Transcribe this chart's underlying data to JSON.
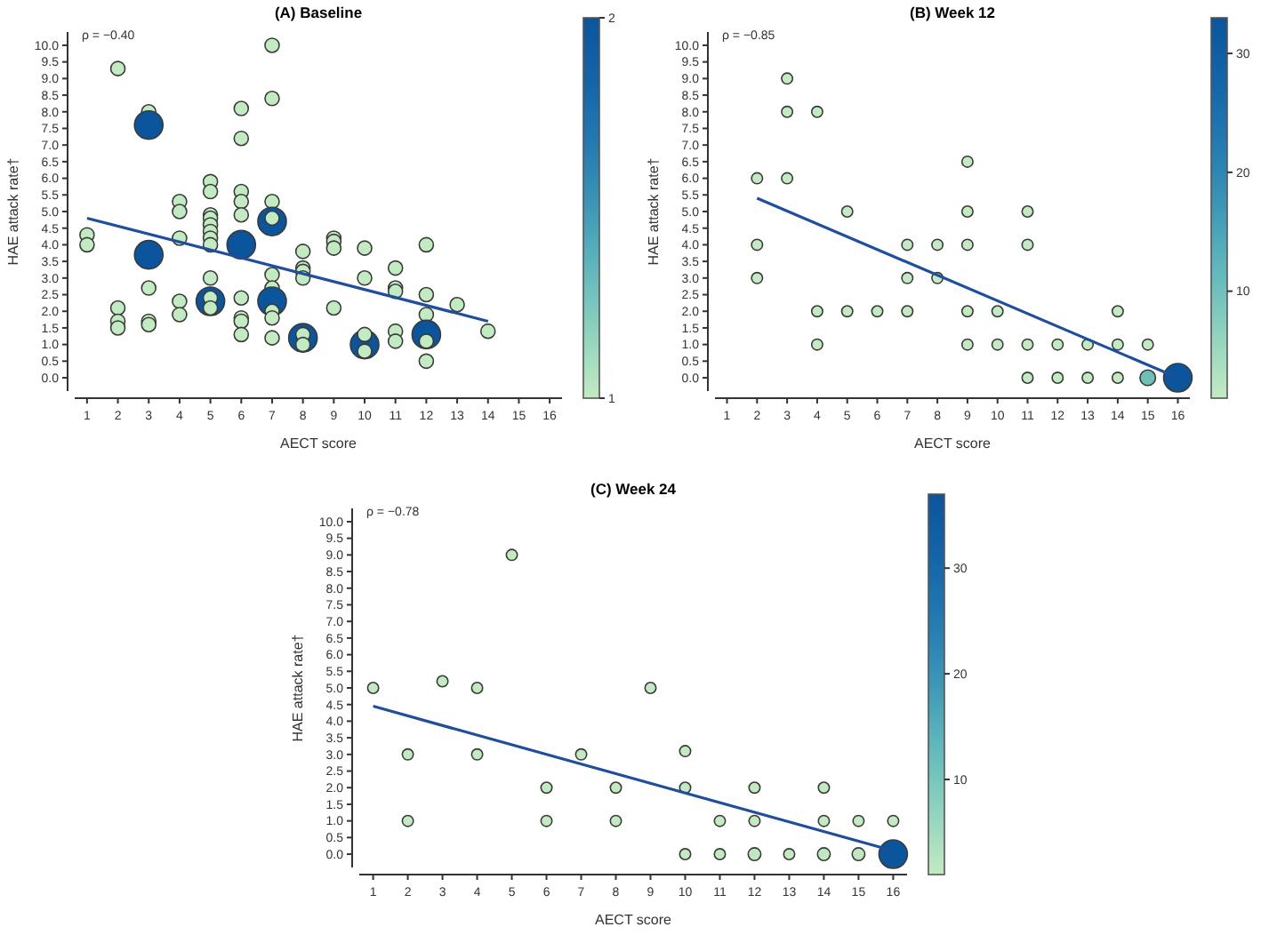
{
  "chart_data": [
    {
      "type": "bubble",
      "title": "(A) Baseline",
      "xlabel": "AECT score",
      "ylabel": "HAE attack rate†",
      "annotations": [
        "ρ = −0.40"
      ],
      "xlim": [
        0.6,
        16.4
      ],
      "ylim": [
        -0.4,
        10.4
      ],
      "xticks": [
        1,
        2,
        3,
        4,
        5,
        6,
        7,
        8,
        9,
        10,
        11,
        12,
        13,
        14,
        15,
        16
      ],
      "yticks": [
        {
          "value": 0,
          "label": "0.0"
        },
        {
          "value": 0.5,
          "label": "0.5"
        },
        {
          "value": 1,
          "label": "1.0"
        },
        {
          "value": 1.5,
          "label": "1.5"
        },
        {
          "value": 2,
          "label": "2.0"
        },
        {
          "value": 2.5,
          "label": "2.5"
        },
        {
          "value": 3,
          "label": "3.0"
        },
        {
          "value": 3.5,
          "label": "3.5"
        },
        {
          "value": 4,
          "label": "4.0"
        },
        {
          "value": 4.5,
          "label": "4.5"
        },
        {
          "value": 5,
          "label": "5.0"
        },
        {
          "value": 5.5,
          "label": "5.5"
        },
        {
          "value": 6,
          "label": "6.0"
        },
        {
          "value": 6.5,
          "label": "6.5"
        },
        {
          "value": 7,
          "label": "7.0"
        },
        {
          "value": 7.5,
          "label": "7.5"
        },
        {
          "value": 8,
          "label": "8.0"
        },
        {
          "value": 8.5,
          "label": "8.5"
        },
        {
          "value": 9,
          "label": "9.0"
        },
        {
          "value": 9.5,
          "label": "9.5"
        },
        {
          "value": 10,
          "label": "10.0"
        }
      ],
      "clim": [
        1,
        2
      ],
      "cticks": [
        1,
        2
      ],
      "series": [
        {
          "marker": "circle",
          "x": [
            1,
            1,
            2,
            2,
            2,
            2,
            3,
            3,
            3,
            3,
            3,
            3,
            4,
            4,
            4,
            4,
            4,
            5,
            5,
            5,
            5,
            5,
            5,
            5,
            5,
            5,
            5,
            5,
            5,
            6,
            6,
            6,
            6,
            6,
            6,
            6,
            6,
            6,
            6,
            7,
            7,
            7,
            7,
            7,
            7,
            7,
            7,
            7,
            7,
            7,
            8,
            8,
            8,
            8,
            8,
            8,
            8,
            9,
            9,
            9,
            9,
            10,
            10,
            10,
            10,
            10,
            11,
            11,
            11,
            11,
            11,
            12,
            12,
            12,
            12,
            12,
            12,
            13,
            14
          ],
          "values": [
            4.3,
            4.0,
            9.3,
            2.1,
            1.7,
            1.5,
            8.0,
            7.6,
            3.7,
            2.7,
            1.7,
            1.6,
            5.3,
            5.0,
            4.2,
            2.3,
            1.9,
            5.9,
            5.6,
            4.9,
            4.8,
            4.6,
            4.4,
            4.2,
            4.0,
            3.0,
            2.3,
            2.4,
            2.1,
            8.1,
            7.2,
            5.6,
            5.3,
            4.9,
            4.0,
            2.4,
            1.8,
            1.7,
            1.3,
            10.0,
            8.4,
            5.3,
            4.7,
            4.8,
            3.1,
            2.7,
            2.3,
            2.0,
            1.8,
            1.2,
            3.8,
            3.3,
            3.2,
            3.0,
            1.2,
            1.3,
            1.0,
            4.2,
            4.1,
            3.9,
            2.1,
            3.9,
            3.0,
            1.0,
            1.3,
            0.8,
            3.3,
            2.7,
            2.6,
            1.4,
            1.1,
            4.0,
            2.5,
            1.9,
            1.3,
            1.1,
            0.5,
            2.2,
            1.4
          ],
          "colors": [
            "#c3ebc2",
            "#c3ebc2",
            "#c3ebc2",
            "#c3ebc2",
            "#c3ebc2",
            "#c3ebc2",
            "#c3ebc2",
            "#0b559c",
            "#0b559c",
            "#c3ebc2",
            "#c3ebc2",
            "#c3ebc2",
            "#c3ebc2",
            "#c3ebc2",
            "#c3ebc2",
            "#c3ebc2",
            "#c3ebc2",
            "#c3ebc2",
            "#c3ebc2",
            "#c3ebc2",
            "#c3ebc2",
            "#c3ebc2",
            "#c3ebc2",
            "#c3ebc2",
            "#c3ebc2",
            "#c3ebc2",
            "#0b559c",
            "#c3ebc2",
            "#c3ebc2",
            "#c3ebc2",
            "#c3ebc2",
            "#c3ebc2",
            "#c3ebc2",
            "#c3ebc2",
            "#0b559c",
            "#c3ebc2",
            "#c3ebc2",
            "#c3ebc2",
            "#c3ebc2",
            "#c3ebc2",
            "#c3ebc2",
            "#c3ebc2",
            "#0b559c",
            "#c3ebc2",
            "#c3ebc2",
            "#c3ebc2",
            "#0b559c",
            "#c3ebc2",
            "#c3ebc2",
            "#c3ebc2",
            "#c3ebc2",
            "#c3ebc2",
            "#c3ebc2",
            "#c3ebc2",
            "#0b559c",
            "#c3ebc2",
            "#c3ebc2",
            "#c3ebc2",
            "#c3ebc2",
            "#c3ebc2",
            "#c3ebc2",
            "#c3ebc2",
            "#c3ebc2",
            "#0b559c",
            "#c3ebc2",
            "#c3ebc2",
            "#c3ebc2",
            "#c3ebc2",
            "#c3ebc2",
            "#c3ebc2",
            "#c3ebc2",
            "#c3ebc2",
            "#c3ebc2",
            "#c3ebc2",
            "#0b559c",
            "#c3ebc2",
            "#c3ebc2",
            "#c3ebc2",
            "#c3ebc2"
          ],
          "sizes": [
            0.25,
            0.25,
            0.25,
            0.25,
            0.25,
            0.25,
            0.25,
            1,
            1,
            0.25,
            0.25,
            0.25,
            0.25,
            0.25,
            0.25,
            0.25,
            0.25,
            0.25,
            0.25,
            0.25,
            0.25,
            0.25,
            0.25,
            0.25,
            0.25,
            0.25,
            1,
            0.25,
            0.25,
            0.25,
            0.25,
            0.25,
            0.25,
            0.25,
            1,
            0.25,
            0.25,
            0.25,
            0.25,
            0.25,
            0.25,
            0.25,
            1,
            0.25,
            0.25,
            0.25,
            1,
            0.25,
            0.25,
            0.25,
            0.25,
            0.25,
            0.25,
            0.25,
            1,
            0.25,
            0.25,
            0.25,
            0.25,
            0.25,
            0.25,
            0.25,
            0.25,
            1,
            0.25,
            0.25,
            0.25,
            0.25,
            0.25,
            0.25,
            0.25,
            0.25,
            0.25,
            0.25,
            1,
            0.25,
            0.25,
            0.25,
            0.25
          ]
        },
        {
          "type": "line",
          "x": [
            1,
            14
          ],
          "values": [
            4.8,
            1.7
          ],
          "color": "#1f4e9c"
        }
      ]
    },
    {
      "type": "bubble",
      "title": "(B) Week 12",
      "xlabel": "AECT score",
      "ylabel": "HAE attack rate†",
      "annotations": [
        "ρ = −0.85"
      ],
      "xlim": [
        0.6,
        16.4
      ],
      "ylim": [
        -0.4,
        10.4
      ],
      "xticks": [
        1,
        2,
        3,
        4,
        5,
        6,
        7,
        8,
        9,
        10,
        11,
        12,
        13,
        14,
        15,
        16
      ],
      "yticks": [
        {
          "value": 0,
          "label": "0.0"
        },
        {
          "value": 0.5,
          "label": "0.5"
        },
        {
          "value": 1,
          "label": "1.0"
        },
        {
          "value": 1.5,
          "label": "1.5"
        },
        {
          "value": 2,
          "label": "2.0"
        },
        {
          "value": 2.5,
          "label": "2.5"
        },
        {
          "value": 3,
          "label": "3.0"
        },
        {
          "value": 3.5,
          "label": "3.5"
        },
        {
          "value": 4,
          "label": "4.0"
        },
        {
          "value": 4.5,
          "label": "4.5"
        },
        {
          "value": 5,
          "label": "5.0"
        },
        {
          "value": 5.5,
          "label": "5.5"
        },
        {
          "value": 6,
          "label": "6.0"
        },
        {
          "value": 6.5,
          "label": "6.5"
        },
        {
          "value": 7,
          "label": "7.0"
        },
        {
          "value": 7.5,
          "label": "7.5"
        },
        {
          "value": 8,
          "label": "8.0"
        },
        {
          "value": 8.5,
          "label": "8.5"
        },
        {
          "value": 9,
          "label": "9.0"
        },
        {
          "value": 9.5,
          "label": "9.5"
        },
        {
          "value": 10,
          "label": "10.0"
        }
      ],
      "clim": [
        1,
        33
      ],
      "cticks": [
        10,
        20,
        30
      ],
      "series": [
        {
          "marker": "circle",
          "x": [
            2,
            2,
            2,
            3,
            3,
            3,
            4,
            4,
            4,
            5,
            5,
            6,
            7,
            7,
            7,
            8,
            8,
            9,
            9,
            9,
            9,
            9,
            10,
            10,
            11,
            11,
            11,
            11,
            12,
            12,
            13,
            13,
            14,
            14,
            14,
            15,
            15,
            16
          ],
          "values": [
            6,
            4,
            3,
            9,
            8,
            6,
            8,
            2,
            1,
            5,
            2,
            2,
            4,
            3,
            2,
            4,
            3,
            6.5,
            5,
            4,
            2,
            1,
            2,
            1,
            5,
            4,
            1,
            0,
            1,
            0,
            1,
            0,
            2,
            1,
            0,
            1,
            0,
            0
          ],
          "colors": [
            "#c3ebc2",
            "#c3ebc2",
            "#c3ebc2",
            "#c3ebc2",
            "#c3ebc2",
            "#c3ebc2",
            "#c3ebc2",
            "#c3ebc2",
            "#c3ebc2",
            "#c3ebc2",
            "#c3ebc2",
            "#c3ebc2",
            "#c3ebc2",
            "#c3ebc2",
            "#c3ebc2",
            "#c3ebc2",
            "#c3ebc2",
            "#c3ebc2",
            "#c3ebc2",
            "#c3ebc2",
            "#c3ebc2",
            "#c3ebc2",
            "#c3ebc2",
            "#c3ebc2",
            "#c3ebc2",
            "#c3ebc2",
            "#c3ebc2",
            "#c3ebc2",
            "#c3ebc2",
            "#c3ebc2",
            "#c3ebc2",
            "#c3ebc2",
            "#c3ebc2",
            "#c3ebc2",
            "#c3ebc2",
            "#c3ebc2",
            "#6cc0b8",
            "#0b559c"
          ],
          "sizes": [
            0.15,
            0.15,
            0.15,
            0.15,
            0.15,
            0.15,
            0.15,
            0.15,
            0.15,
            0.15,
            0.15,
            0.15,
            0.15,
            0.15,
            0.15,
            0.15,
            0.15,
            0.15,
            0.15,
            0.15,
            0.15,
            0.15,
            0.15,
            0.15,
            0.15,
            0.15,
            0.15,
            0.15,
            0.15,
            0.15,
            0.15,
            0.15,
            0.15,
            0.15,
            0.15,
            0.15,
            0.3,
            1
          ]
        },
        {
          "type": "line",
          "x": [
            2,
            16
          ],
          "values": [
            5.4,
            0
          ],
          "color": "#1f4e9c"
        }
      ]
    },
    {
      "type": "bubble",
      "title": "(C) Week 24",
      "xlabel": "AECT score",
      "ylabel": "HAE attack rate†",
      "annotations": [
        "ρ = −0.78"
      ],
      "xlim": [
        0.6,
        16.4
      ],
      "ylim": [
        -0.4,
        10.4
      ],
      "xticks": [
        1,
        2,
        3,
        4,
        5,
        6,
        7,
        8,
        9,
        10,
        11,
        12,
        13,
        14,
        15,
        16
      ],
      "yticks": [
        {
          "value": 0,
          "label": "0.0"
        },
        {
          "value": 0.5,
          "label": "0.5"
        },
        {
          "value": 1,
          "label": "1.0"
        },
        {
          "value": 1.5,
          "label": "1.5"
        },
        {
          "value": 2,
          "label": "2.0"
        },
        {
          "value": 2.5,
          "label": "2.5"
        },
        {
          "value": 3,
          "label": "3.0"
        },
        {
          "value": 3.5,
          "label": "3.5"
        },
        {
          "value": 4,
          "label": "4.0"
        },
        {
          "value": 4.5,
          "label": "4.5"
        },
        {
          "value": 5,
          "label": "5.0"
        },
        {
          "value": 5.5,
          "label": "5.5"
        },
        {
          "value": 6,
          "label": "6.0"
        },
        {
          "value": 6.5,
          "label": "6.5"
        },
        {
          "value": 7,
          "label": "7.0"
        },
        {
          "value": 7.5,
          "label": "7.5"
        },
        {
          "value": 8,
          "label": "8.0"
        },
        {
          "value": 8.5,
          "label": "8.5"
        },
        {
          "value": 9,
          "label": "9.0"
        },
        {
          "value": 9.5,
          "label": "9.5"
        },
        {
          "value": 10,
          "label": "10.0"
        }
      ],
      "clim": [
        1,
        37
      ],
      "cticks": [
        10,
        20,
        30
      ],
      "series": [
        {
          "marker": "circle",
          "x": [
            1,
            2,
            2,
            3,
            4,
            4,
            5,
            6,
            6,
            7,
            8,
            8,
            9,
            10,
            10,
            10,
            11,
            11,
            12,
            12,
            12,
            13,
            14,
            14,
            14,
            15,
            15,
            16,
            16
          ],
          "values": [
            5,
            3,
            1,
            5.2,
            5,
            3,
            9,
            2,
            1,
            3,
            2,
            1,
            5,
            3.1,
            2,
            0,
            1,
            0,
            2,
            1,
            0,
            0,
            2,
            1,
            0,
            1,
            0,
            1,
            0
          ],
          "colors": [
            "#c3ebc2",
            "#c3ebc2",
            "#c3ebc2",
            "#c3ebc2",
            "#c3ebc2",
            "#c3ebc2",
            "#c3ebc2",
            "#c3ebc2",
            "#c3ebc2",
            "#c3ebc2",
            "#c3ebc2",
            "#c3ebc2",
            "#c3ebc2",
            "#c3ebc2",
            "#c3ebc2",
            "#c3ebc2",
            "#c3ebc2",
            "#c3ebc2",
            "#c3ebc2",
            "#c3ebc2",
            "#bde8c1",
            "#c3ebc2",
            "#c3ebc2",
            "#c3ebc2",
            "#bde8c1",
            "#c3ebc2",
            "#bde8c1",
            "#c3ebc2",
            "#0b559c"
          ],
          "sizes": [
            0.15,
            0.15,
            0.15,
            0.15,
            0.15,
            0.15,
            0.15,
            0.15,
            0.15,
            0.15,
            0.15,
            0.15,
            0.15,
            0.15,
            0.15,
            0.15,
            0.15,
            0.15,
            0.15,
            0.15,
            0.2,
            0.15,
            0.15,
            0.15,
            0.2,
            0.15,
            0.2,
            0.15,
            1
          ]
        },
        {
          "type": "line",
          "x": [
            1,
            16
          ],
          "values": [
            4.45,
            0.1
          ],
          "color": "#1f4e9c"
        }
      ]
    }
  ]
}
